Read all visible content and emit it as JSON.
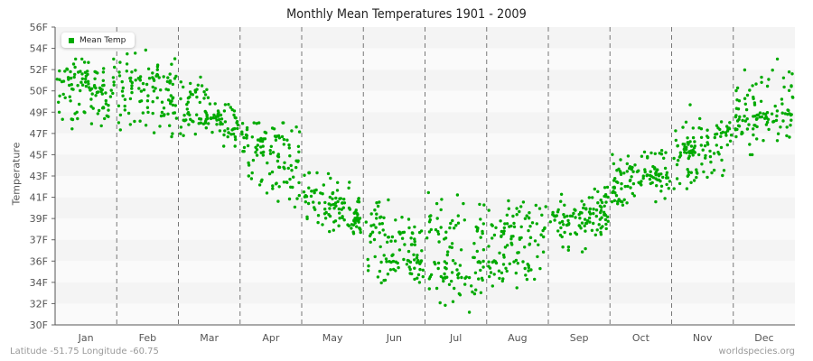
{
  "title": "Monthly Mean Temperatures 1901 - 2009",
  "footer": {
    "location": "Latitude -51.75 Longitude -60.75",
    "source": "worldspecies.org"
  },
  "legend": {
    "label": "Mean Temp",
    "color": "#00aa00"
  },
  "chart_data": {
    "type": "scatter",
    "title": "Monthly Mean Temperatures 1901 - 2009",
    "xlabel": "",
    "ylabel": "Temperature",
    "categories": [
      "Jan",
      "Feb",
      "Mar",
      "Apr",
      "May",
      "Jun",
      "Jul",
      "Aug",
      "Sep",
      "Oct",
      "Nov",
      "Dec"
    ],
    "y_ticks": [
      "56F",
      "54F",
      "52F",
      "50F",
      "49F",
      "47F",
      "45F",
      "43F",
      "41F",
      "39F",
      "37F",
      "36F",
      "34F",
      "32F",
      "30F"
    ],
    "ylim": [
      30,
      56
    ],
    "grid": {
      "horizontal_bands": true,
      "vertical_dashed_month_separators": true
    },
    "legend_position": "top-left",
    "series": [
      {
        "name": "Mean Temp",
        "color": "#00aa00",
        "points_per_month": 109,
        "monthly_mean": [
          50.5,
          50.4,
          48.7,
          45.2,
          39.8,
          36.8,
          36.0,
          37.2,
          39.0,
          43.0,
          45.5,
          48.8
        ],
        "monthly_min": [
          46.2,
          46.0,
          45.8,
          37.2,
          36.2,
          33.0,
          30.6,
          32.7,
          35.8,
          38.8,
          41.8,
          45.0
        ],
        "monthly_max": [
          53.0,
          54.0,
          51.3,
          48.0,
          43.3,
          41.3,
          42.2,
          41.3,
          43.0,
          46.0,
          49.5,
          53.0
        ]
      }
    ]
  }
}
